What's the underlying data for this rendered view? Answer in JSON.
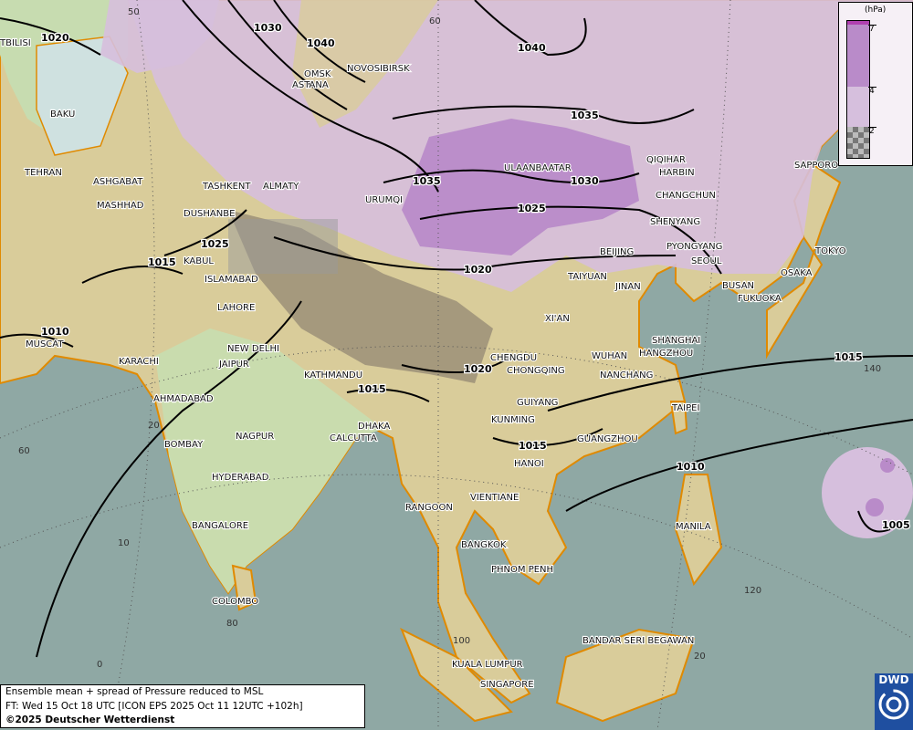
{
  "map": {
    "colors": {
      "sea": "#8fa8a4",
      "land": "#d9cc9a",
      "lowland": "#c7dcb0",
      "mountain": "#9b8f78",
      "spread_low": "#d6bfdd",
      "spread_mid": "#b98bc9",
      "coast": "#e08a00",
      "isobar": "#000000"
    },
    "isobar_labels": [
      {
        "value": "1020",
        "pos": "caspian-north"
      },
      {
        "value": "1030",
        "pos": "kazakhstan-north"
      },
      {
        "value": "1040",
        "pos": "kazakhstan"
      },
      {
        "value": "1040",
        "pos": "siberia"
      },
      {
        "value": "1035",
        "pos": "mongolia-north"
      },
      {
        "value": "1035",
        "pos": "xinjiang"
      },
      {
        "value": "1030",
        "pos": "mongolia"
      },
      {
        "value": "1025",
        "pos": "mongolia-south"
      },
      {
        "value": "1020",
        "pos": "qinghai"
      },
      {
        "value": "1025",
        "pos": "tajikistan"
      },
      {
        "value": "1015",
        "pos": "afghanistan"
      },
      {
        "value": "1010",
        "pos": "arabian-sea"
      },
      {
        "value": "1020",
        "pos": "tibet"
      },
      {
        "value": "1015",
        "pos": "bangladesh"
      },
      {
        "value": "1015",
        "pos": "vietnam"
      },
      {
        "value": "1015",
        "pos": "pacific"
      },
      {
        "value": "1010",
        "pos": "philippine-sea"
      },
      {
        "value": "1005",
        "pos": "typhoon"
      }
    ],
    "cities": [
      "TBILISI",
      "BAKU",
      "TEHRAN",
      "ASHGABAT",
      "MASHHAD",
      "TASHKENT",
      "ALMATY",
      "DUSHANBE",
      "KABUL",
      "ISLAMABAD",
      "LAHORE",
      "OMSK",
      "NOVOSIBIRSK",
      "ASTANA",
      "URUMQI",
      "ULAANBAATAR",
      "QIQIHAR",
      "HARBIN",
      "CHANGCHUN",
      "SHENYANG",
      "BEIJING",
      "PYONGYANG",
      "SEOUL",
      "BUSAN",
      "FUKUOKA",
      "OSAKA",
      "TOKYO",
      "SAPPORO",
      "TAIYUAN",
      "JINAN",
      "XI'AN",
      "SHANGHAI",
      "HANGZHOU",
      "WUHAN",
      "NANCHANG",
      "CHENGDU",
      "CHONGQING",
      "GUIYANG",
      "KUNMING",
      "GUANGZHOU",
      "TAIPEI",
      "HANOI",
      "MUSCAT",
      "KARACHI",
      "NEW DELHI",
      "JAIPUR",
      "KATHMANDU",
      "AHMADABAD",
      "BOMBAY",
      "NAGPUR",
      "HYDERABAD",
      "BANGALORE",
      "COLOMBO",
      "DHAKA",
      "CALCUTTA",
      "RANGOON",
      "VIENTIANE",
      "BANGKOK",
      "PHNOM PENH",
      "MANILA",
      "BANDAR SERI BEGAWAN",
      "KUALA LUMPUR",
      "SINGAPORE"
    ],
    "grid_labels": [
      "50",
      "60",
      "140",
      "20",
      "60",
      "20",
      "10",
      "80",
      "0",
      "100",
      "120"
    ]
  },
  "legend": {
    "unit": "(hPa)",
    "ticks": [
      "7",
      "4",
      "2"
    ],
    "colors": {
      "high": "#b98bc9",
      "mid": "#d6bfdd",
      "low": "checker",
      "top": "#b040b0"
    }
  },
  "caption": {
    "line1": "Ensemble mean + spread of Pressure reduced to MSL",
    "line2": "FT: Wed 15 Oct 18 UTC [ICON EPS 2025 Oct 11 12UTC +102h]",
    "line3": "©2025 Deutscher Wetterdienst"
  },
  "logo": {
    "text": "DWD"
  }
}
